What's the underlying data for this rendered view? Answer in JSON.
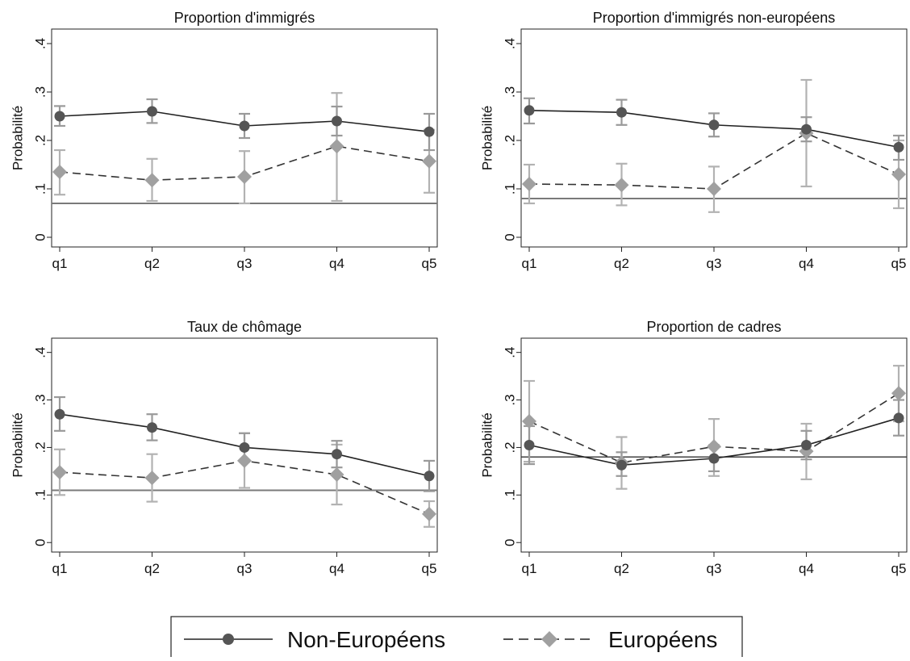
{
  "legend": {
    "entries": [
      {
        "label": "Non-Européens",
        "marker": "circle",
        "line": "solid",
        "color": "#555555"
      },
      {
        "label": "Européens",
        "marker": "diamond",
        "line": "dashed",
        "color": "#a0a0a0"
      }
    ],
    "placement": "bottom-center"
  },
  "chart_data": [
    {
      "type": "line",
      "title": "Proportion d'immigrés",
      "xlabel": "",
      "ylabel": "Probabilité",
      "categories": [
        "q1",
        "q2",
        "q3",
        "q4",
        "q5"
      ],
      "yticks": [
        0,
        0.1,
        0.2,
        0.3,
        0.4
      ],
      "ytick_labels": [
        "0",
        ".1",
        ".2",
        ".3",
        ".4"
      ],
      "ylim": [
        -0.02,
        0.43
      ],
      "reference_line": 0.07,
      "grid": false,
      "series": [
        {
          "name": "Non-Européens",
          "values": [
            0.25,
            0.26,
            0.23,
            0.24,
            0.218
          ],
          "ci_low": [
            0.23,
            0.236,
            0.205,
            0.21,
            0.18
          ],
          "ci_high": [
            0.271,
            0.285,
            0.255,
            0.27,
            0.255
          ]
        },
        {
          "name": "Européens",
          "values": [
            0.135,
            0.118,
            0.125,
            0.188,
            0.157
          ],
          "ci_low": [
            0.088,
            0.075,
            0.07,
            0.075,
            0.092
          ],
          "ci_high": [
            0.18,
            0.162,
            0.178,
            0.298,
            0.222
          ]
        }
      ]
    },
    {
      "type": "line",
      "title": "Proportion d'immigrés non-européens",
      "xlabel": "",
      "ylabel": "Probabilité",
      "categories": [
        "q1",
        "q2",
        "q3",
        "q4",
        "q5"
      ],
      "yticks": [
        0,
        0.1,
        0.2,
        0.3,
        0.4
      ],
      "ytick_labels": [
        "0",
        ".1",
        ".2",
        ".3",
        ".4"
      ],
      "ylim": [
        -0.02,
        0.43
      ],
      "reference_line": 0.08,
      "grid": false,
      "series": [
        {
          "name": "Non-Européens",
          "values": [
            0.262,
            0.258,
            0.232,
            0.223,
            0.186
          ],
          "ci_low": [
            0.235,
            0.232,
            0.208,
            0.198,
            0.16
          ],
          "ci_high": [
            0.287,
            0.284,
            0.256,
            0.248,
            0.21
          ]
        },
        {
          "name": "Européens",
          "values": [
            0.11,
            0.108,
            0.1,
            0.215,
            0.13
          ],
          "ci_low": [
            0.07,
            0.066,
            0.052,
            0.105,
            0.06
          ],
          "ci_high": [
            0.15,
            0.152,
            0.146,
            0.325,
            0.2
          ]
        }
      ]
    },
    {
      "type": "line",
      "title": "Taux de chômage",
      "xlabel": "",
      "ylabel": "Probabilité",
      "categories": [
        "q1",
        "q2",
        "q3",
        "q4",
        "q5"
      ],
      "yticks": [
        0,
        0.1,
        0.2,
        0.3,
        0.4
      ],
      "ytick_labels": [
        "0",
        ".1",
        ".2",
        ".3",
        ".4"
      ],
      "ylim": [
        -0.02,
        0.43
      ],
      "reference_line": 0.11,
      "grid": false,
      "series": [
        {
          "name": "Non-Européens",
          "values": [
            0.27,
            0.242,
            0.2,
            0.186,
            0.14
          ],
          "ci_low": [
            0.235,
            0.215,
            0.17,
            0.158,
            0.108
          ],
          "ci_high": [
            0.306,
            0.27,
            0.23,
            0.214,
            0.172
          ]
        },
        {
          "name": "Européens",
          "values": [
            0.148,
            0.136,
            0.172,
            0.143,
            0.06
          ],
          "ci_low": [
            0.1,
            0.086,
            0.115,
            0.08,
            0.033
          ],
          "ci_high": [
            0.196,
            0.186,
            0.23,
            0.206,
            0.087
          ]
        }
      ]
    },
    {
      "type": "line",
      "title": "Proportion de cadres",
      "xlabel": "",
      "ylabel": "Probabilité",
      "categories": [
        "q1",
        "q2",
        "q3",
        "q4",
        "q5"
      ],
      "yticks": [
        0,
        0.1,
        0.2,
        0.3,
        0.4
      ],
      "ytick_labels": [
        "0",
        ".1",
        ".2",
        ".3",
        ".4"
      ],
      "ylim": [
        -0.02,
        0.43
      ],
      "reference_line": 0.18,
      "grid": false,
      "series": [
        {
          "name": "Non-Européens",
          "values": [
            0.205,
            0.163,
            0.177,
            0.205,
            0.262
          ],
          "ci_low": [
            0.165,
            0.14,
            0.15,
            0.175,
            0.225
          ],
          "ci_high": [
            0.245,
            0.19,
            0.205,
            0.235,
            0.3
          ]
        },
        {
          "name": "Européens",
          "values": [
            0.255,
            0.168,
            0.202,
            0.192,
            0.314
          ],
          "ci_low": [
            0.17,
            0.113,
            0.14,
            0.133,
            0.255
          ],
          "ci_high": [
            0.34,
            0.222,
            0.26,
            0.25,
            0.372
          ]
        }
      ]
    }
  ]
}
